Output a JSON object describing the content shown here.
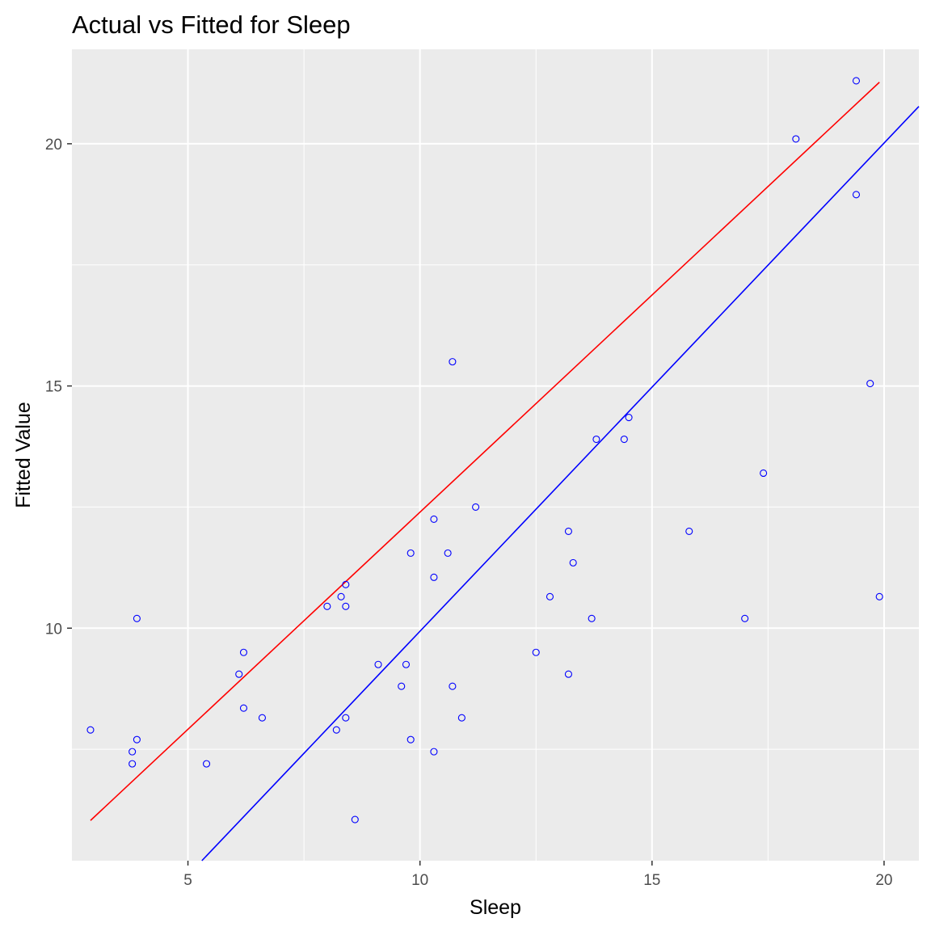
{
  "chart_data": {
    "type": "scatter",
    "title": "Actual vs Fitted for Sleep",
    "xlabel": "Sleep",
    "ylabel": "Fitted Value",
    "xlim": [
      2.5,
      20.75
    ],
    "ylim": [
      5.2,
      21.95
    ],
    "x_ticks": [
      5,
      10,
      15,
      20
    ],
    "y_ticks": [
      10,
      15,
      20
    ],
    "x_tick_labels": [
      "5",
      "10",
      "15",
      "20"
    ],
    "y_tick_labels": [
      "10",
      "15",
      "20"
    ],
    "grid": true,
    "points": {
      "x": [
        2.9,
        3.8,
        3.8,
        3.9,
        3.9,
        5.4,
        6.1,
        6.2,
        6.2,
        6.6,
        8.0,
        8.2,
        8.3,
        8.4,
        8.4,
        8.4,
        8.6,
        9.1,
        9.6,
        9.7,
        9.8,
        9.8,
        10.3,
        10.3,
        10.3,
        10.6,
        10.7,
        10.7,
        10.9,
        11.2,
        12.5,
        12.8,
        13.2,
        13.2,
        13.3,
        13.7,
        13.8,
        14.4,
        14.5,
        15.8,
        17.0,
        17.4,
        18.1,
        19.4,
        19.4,
        19.7,
        19.9
      ],
      "y": [
        7.9,
        7.45,
        7.2,
        7.7,
        10.2,
        7.2,
        9.05,
        9.5,
        8.35,
        8.15,
        10.45,
        7.9,
        10.65,
        10.9,
        10.45,
        8.15,
        6.05,
        9.25,
        8.8,
        9.25,
        11.55,
        7.7,
        12.25,
        11.05,
        7.45,
        11.55,
        15.5,
        8.8,
        8.15,
        12.5,
        9.5,
        10.65,
        12.0,
        9.05,
        11.35,
        10.2,
        13.9,
        13.9,
        14.35,
        12.0,
        10.2,
        13.2,
        20.1,
        21.3,
        18.95,
        15.05,
        10.65
      ]
    },
    "lines": [
      {
        "color": "#ff0000",
        "x": [
          2.9,
          19.9
        ],
        "y": [
          6.03,
          21.27
        ]
      },
      {
        "color": "#0000ff",
        "x": [
          5.3,
          20.75
        ],
        "y": [
          5.2,
          20.77
        ]
      }
    ],
    "colors": {
      "panel_background": "#ebebeb",
      "grid": "#ffffff",
      "point": "#0000ff",
      "tick_mark": "#333333"
    }
  }
}
